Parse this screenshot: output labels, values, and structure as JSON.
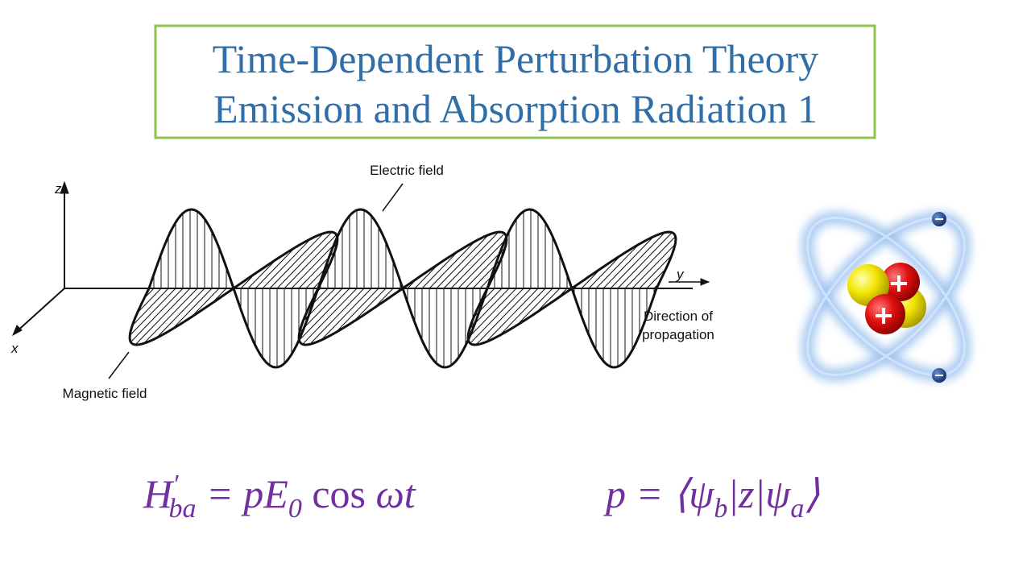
{
  "header": {
    "title_lines": [
      "Time-Dependent Perturbation Theory",
      "Emission and Absorption Radiation 1"
    ]
  },
  "diagram": {
    "axis_z": "z",
    "axis_y": "y",
    "axis_x": "x",
    "electric_label": "Electric field",
    "magnetic_label": "Magnetic field",
    "direction_lines": [
      "Direction of",
      "propagation"
    ]
  },
  "equations": [
    {
      "segments": [
        {
          "text": "H",
          "pos": "base"
        },
        {
          "text": "′",
          "pos": "sup"
        },
        {
          "text": "ba",
          "pos": "sub"
        },
        {
          "text": " = pE",
          "pos": "base"
        },
        {
          "text": "0",
          "pos": "sub"
        },
        {
          "text": " cos ",
          "pos": "upright"
        },
        {
          "text": "ωt",
          "pos": "base"
        }
      ]
    },
    {
      "segments": [
        {
          "text": "p = ⟨ψ",
          "pos": "base"
        },
        {
          "text": "b",
          "pos": "sub"
        },
        {
          "text": "|z|ψ",
          "pos": "base"
        },
        {
          "text": "a",
          "pos": "sub"
        },
        {
          "text": "⟩",
          "pos": "base"
        }
      ]
    }
  ]
}
